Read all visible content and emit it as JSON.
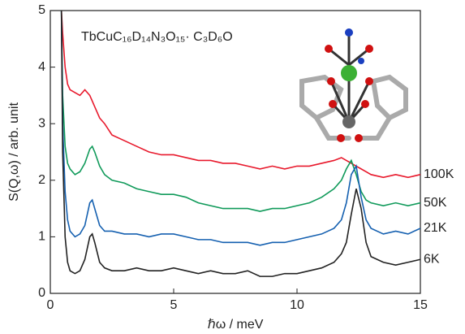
{
  "chart_data": {
    "type": "line",
    "title": "TbCuC₁₆D₁₄N₃O₁₅· C₃D₆O",
    "x_label": "ℏω / meV",
    "y_label": "S(Q,ω) / arb. unit",
    "x": [
      0.45,
      0.5,
      0.6,
      0.7,
      0.8,
      1.0,
      1.2,
      1.4,
      1.6,
      1.7,
      1.8,
      2.0,
      2.2,
      2.5,
      3,
      3.5,
      4,
      4.5,
      5,
      5.5,
      6,
      6.5,
      7,
      7.5,
      8,
      8.5,
      9,
      9.5,
      10,
      10.5,
      11,
      11.5,
      11.8,
      12,
      12.2,
      12.4,
      12.6,
      12.8,
      13,
      13.5,
      14,
      14.5,
      15
    ],
    "series": [
      {
        "name": "100K",
        "color": "#e8192c",
        "values": [
          5,
          4.6,
          4.0,
          3.7,
          3.6,
          3.55,
          3.5,
          3.6,
          3.5,
          3.4,
          3.3,
          3.1,
          3.0,
          2.8,
          2.7,
          2.6,
          2.5,
          2.45,
          2.45,
          2.4,
          2.35,
          2.35,
          2.3,
          2.3,
          2.25,
          2.2,
          2.25,
          2.2,
          2.25,
          2.25,
          2.3,
          2.35,
          2.4,
          2.35,
          2.3,
          2.25,
          2.2,
          2.15,
          2.1,
          2.05,
          2.1,
          2.05,
          2.1
        ]
      },
      {
        "name": "50K",
        "color": "#109a5a",
        "values": [
          5,
          3.5,
          2.6,
          2.3,
          2.2,
          2.1,
          2.15,
          2.3,
          2.55,
          2.6,
          2.5,
          2.25,
          2.1,
          2.0,
          1.95,
          1.85,
          1.8,
          1.75,
          1.75,
          1.7,
          1.6,
          1.55,
          1.5,
          1.5,
          1.5,
          1.45,
          1.5,
          1.5,
          1.55,
          1.6,
          1.7,
          1.85,
          2.0,
          2.2,
          2.35,
          2.1,
          1.8,
          1.65,
          1.6,
          1.55,
          1.6,
          1.55,
          1.6
        ]
      },
      {
        "name": "21K",
        "color": "#1560b0",
        "values": [
          5,
          3.0,
          1.8,
          1.3,
          1.1,
          1.0,
          1.05,
          1.2,
          1.6,
          1.65,
          1.5,
          1.2,
          1.1,
          1.1,
          1.05,
          1.05,
          1.0,
          1.05,
          1.05,
          1.0,
          0.95,
          0.95,
          0.9,
          0.9,
          0.9,
          0.85,
          0.9,
          0.9,
          0.95,
          1.0,
          1.05,
          1.15,
          1.3,
          1.6,
          2.1,
          2.25,
          1.7,
          1.3,
          1.15,
          1.05,
          1.1,
          1.05,
          1.15
        ]
      },
      {
        "name": "6K",
        "color": "#222222",
        "values": [
          5,
          2.5,
          1.0,
          0.55,
          0.4,
          0.35,
          0.4,
          0.6,
          1.0,
          1.05,
          0.9,
          0.55,
          0.45,
          0.4,
          0.4,
          0.45,
          0.4,
          0.4,
          0.45,
          0.4,
          0.35,
          0.4,
          0.35,
          0.35,
          0.4,
          0.3,
          0.3,
          0.35,
          0.35,
          0.4,
          0.45,
          0.55,
          0.7,
          0.9,
          1.4,
          1.85,
          1.5,
          0.9,
          0.65,
          0.55,
          0.5,
          0.55,
          0.6
        ]
      }
    ],
    "xlim": [
      0,
      15
    ],
    "ylim": [
      0,
      5
    ],
    "xticks": [
      0,
      5,
      10,
      15
    ],
    "yticks": [
      0,
      1,
      2,
      3,
      4,
      5
    ]
  }
}
